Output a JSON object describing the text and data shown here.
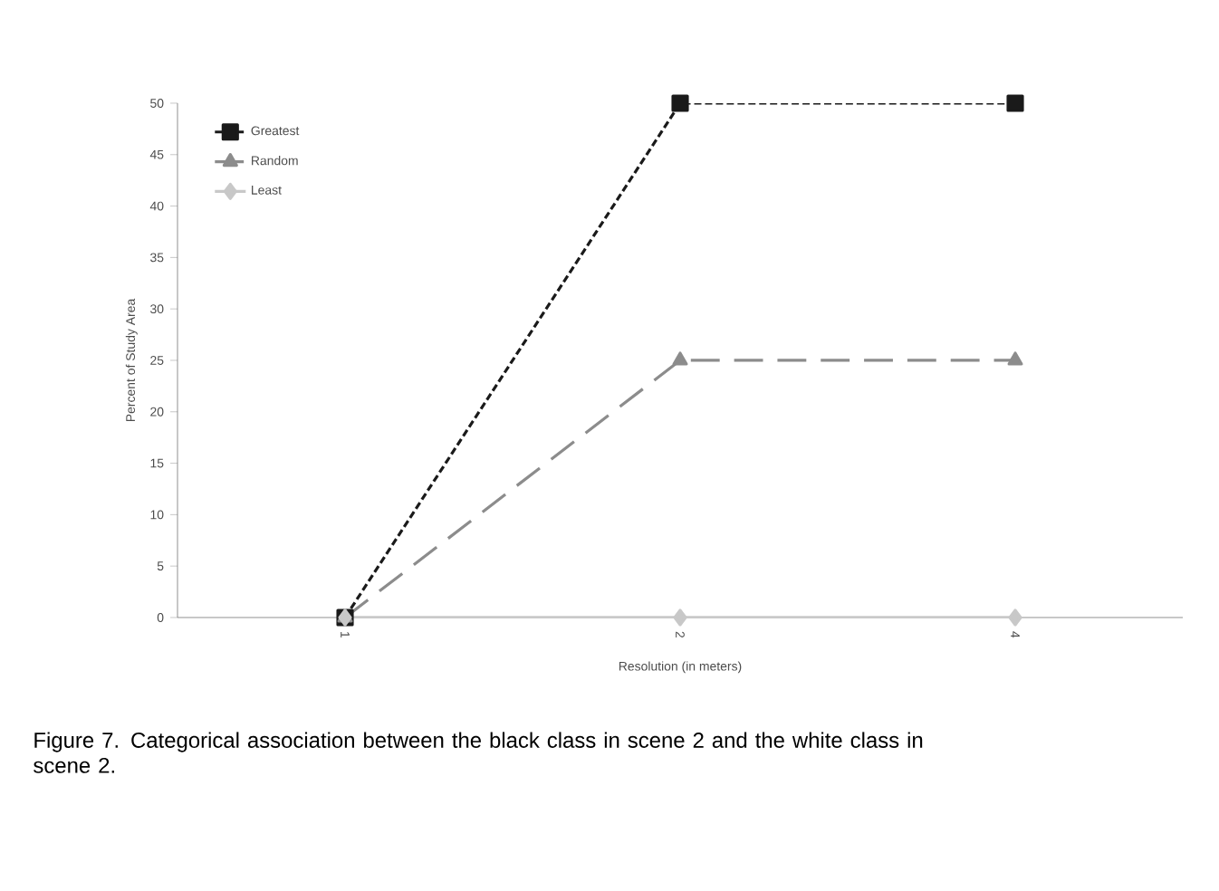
{
  "chart_data": {
    "type": "line",
    "xlabel": "Resolution (in meters)",
    "ylabel": "Percent of Study Area",
    "categories": [
      "1",
      "2",
      "4"
    ],
    "ylim": [
      0,
      50
    ],
    "yticks": [
      0,
      5,
      10,
      15,
      20,
      25,
      30,
      35,
      40,
      45,
      50
    ],
    "legend": "top left",
    "grid": false,
    "series": [
      {
        "name": "Greatest",
        "color": "#1a1a1a",
        "values": [
          0,
          50,
          50
        ],
        "marker": "square",
        "line_style": "dashed"
      },
      {
        "name": "Random",
        "color": "#8c8c8c",
        "values": [
          0,
          25,
          25
        ],
        "marker": "triangle",
        "line_style": "dashed"
      },
      {
        "name": "Least",
        "color": "#c8c8c8",
        "values": [
          0,
          0,
          0
        ],
        "marker": "diamond",
        "line_style": "solid"
      }
    ],
    "annotations": [
      "Figure 7. Categorical association between the black class in scene 2 and the white class in scene 2."
    ]
  }
}
